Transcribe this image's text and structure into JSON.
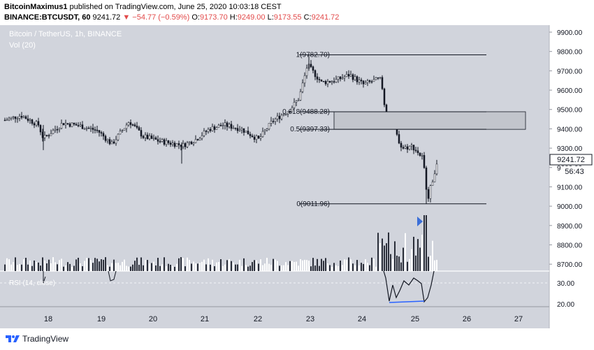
{
  "header": {
    "author": "BitcoinMaximus1",
    "published_text": "published on TradingView.com, June 25, 2020 10:03:18 CEST",
    "symbol": "BINANCE:BTCUSDT, 60",
    "last": "9241.72",
    "change": "▼ −54.77 (−0.59%)",
    "o_label": "O:",
    "o_value": "9173.70",
    "h_label": "H:",
    "h_value": "9249.00",
    "l_label": "L:",
    "l_value": "9173.55",
    "c_label": "C:",
    "c_value": "9241.72"
  },
  "chart": {
    "title": "Bitcoin / TetherUS, 1h, BINANCE",
    "vol_label": "Vol (20)",
    "rsi_label": "RSI (14, close)",
    "price_ticks": [
      "9900.00",
      "9800.00",
      "9700.00",
      "9600.00",
      "9500.00",
      "9400.00",
      "9300.00",
      "9200.00",
      "9100.00",
      "9000.00",
      "8900.00",
      "8800.00",
      "8700.00"
    ],
    "rsi_ticks": [
      "30.00",
      "20.00"
    ],
    "date_ticks": [
      "18",
      "19",
      "20",
      "21",
      "22",
      "23",
      "24",
      "25",
      "26",
      "27"
    ],
    "current_price": "9241.72",
    "countdown": "56:43",
    "fib_levels": [
      {
        "label": "1(9782.70)",
        "price": 9782.7
      },
      {
        "label": "0.618(9488.28)",
        "price": 9488.28
      },
      {
        "label": "0.5(9397.33)",
        "price": 9397.33
      },
      {
        "label": "0(9011.96)",
        "price": 9011.96
      }
    ],
    "colors": {
      "background": "#d1d4dc",
      "candle": "#131722",
      "box": "#c2c5cc",
      "rsi_divergence": "#2962ff",
      "marker": "#3b6fd8"
    }
  },
  "footer": {
    "brand": "TradingView",
    "logo_icon": "tradingview-logo-icon"
  }
}
